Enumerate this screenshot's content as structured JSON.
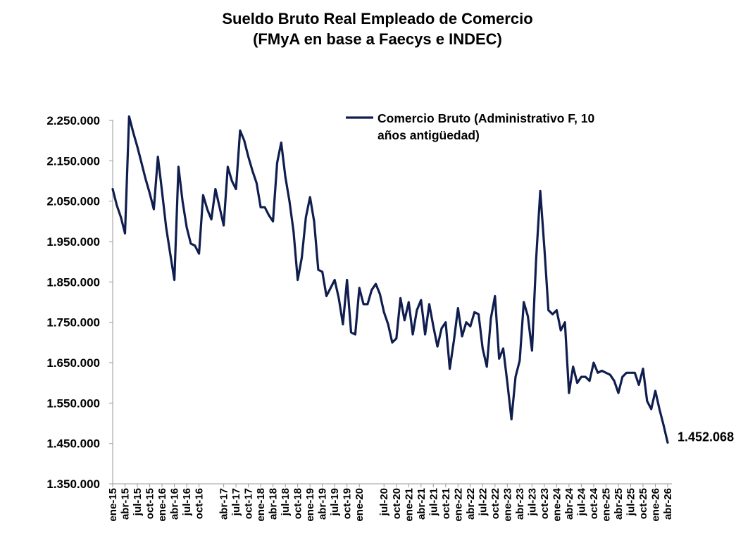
{
  "chart_data": {
    "type": "line",
    "title": "Sueldo Bruto Real Empleado de Comercio",
    "subtitle": "(FMyA en base a Faecys e INDEC)",
    "xlabel": "",
    "ylabel": "",
    "ylim": [
      1350000,
      2250000
    ],
    "y_ticks": [
      1350000,
      1450000,
      1550000,
      1650000,
      1750000,
      1850000,
      1950000,
      2050000,
      2150000,
      2250000
    ],
    "y_tick_labels": [
      "1.350.000",
      "1.450.000",
      "1.550.000",
      "1.650.000",
      "1.750.000",
      "1.850.000",
      "1.950.000",
      "2.050.000",
      "2.150.000",
      "2.250.000"
    ],
    "x_tick_labels": [
      "ene-15",
      "abr-15",
      "jul-15",
      "oct-15",
      "ene-16",
      "abr-16",
      "jul-16",
      "oct-16",
      "abr-17",
      "jul-17",
      "oct-17",
      "ene-18",
      "abr-18",
      "jul-18",
      "oct-18",
      "ene-19",
      "abr-19",
      "jul-19",
      "oct-19",
      "ene-20",
      "jul-20",
      "oct-20",
      "ene-21",
      "abr-21",
      "jul-21",
      "oct-21",
      "ene-22",
      "abr-22",
      "jul-22",
      "oct-22",
      "ene-23",
      "abr-23",
      "jul-23",
      "oct-23",
      "ene-24",
      "abr-24",
      "jul-24",
      "oct-24",
      "ene-25",
      "abr-25",
      "jul-25",
      "oct-25",
      "ene-26",
      "abr-26"
    ],
    "x_tick_month_index": [
      0,
      3,
      6,
      9,
      12,
      15,
      18,
      21,
      27,
      30,
      33,
      36,
      39,
      42,
      45,
      48,
      51,
      54,
      57,
      60,
      66,
      69,
      72,
      75,
      78,
      81,
      84,
      87,
      90,
      93,
      96,
      99,
      102,
      105,
      108,
      111,
      114,
      117,
      120,
      123,
      126,
      129,
      132,
      135
    ],
    "legend": "top-center",
    "grid": false,
    "series": [
      {
        "name": "Comercio Bruto (Administrativo F, 10 años antigüedad)",
        "legend_lines": [
          "Comercio Bruto (Administrativo F, 10",
          "años antigüedad)"
        ],
        "color": "#0f1e4e",
        "start_month": "ene-15",
        "values": [
          2080000,
          2040000,
          2010000,
          1970000,
          2260000,
          2220000,
          2185000,
          2145000,
          2105000,
          2070000,
          2030000,
          2160000,
          2075000,
          1985000,
          1920000,
          1855000,
          2135000,
          2050000,
          1985000,
          1945000,
          1940000,
          1920000,
          2065000,
          2030000,
          2005000,
          2080000,
          2035000,
          1990000,
          2135000,
          2100000,
          2080000,
          2225000,
          2200000,
          2160000,
          2125000,
          2095000,
          2035000,
          2035000,
          2015000,
          2000000,
          2145000,
          2195000,
          2110000,
          2050000,
          1975000,
          1855000,
          1910000,
          2010000,
          2060000,
          2000000,
          1880000,
          1875000,
          1815000,
          1835000,
          1855000,
          1810000,
          1745000,
          1855000,
          1725000,
          1720000,
          1835000,
          1795000,
          1795000,
          1830000,
          1845000,
          1820000,
          1775000,
          1745000,
          1700000,
          1710000,
          1810000,
          1755000,
          1800000,
          1720000,
          1780000,
          1805000,
          1720000,
          1795000,
          1740000,
          1690000,
          1735000,
          1750000,
          1635000,
          1705000,
          1785000,
          1715000,
          1750000,
          1740000,
          1775000,
          1770000,
          1685000,
          1640000,
          1760000,
          1815000,
          1660000,
          1685000,
          1600000,
          1510000,
          1615000,
          1655000,
          1800000,
          1765000,
          1680000,
          1905000,
          2075000,
          1935000,
          1780000,
          1770000,
          1780000,
          1730000,
          1750000,
          1575000,
          1640000,
          1600000,
          1615000,
          1615000,
          1605000,
          1650000,
          1625000,
          1630000,
          1625000,
          1620000,
          1605000,
          1575000,
          1615000,
          1625000,
          1625000,
          1625000,
          1595000,
          1635000,
          1555000,
          1535000,
          1580000,
          1535000,
          1495000,
          1452068
        ]
      }
    ],
    "annotations": [
      {
        "text": "1.452.068",
        "at_point": "last"
      }
    ]
  }
}
